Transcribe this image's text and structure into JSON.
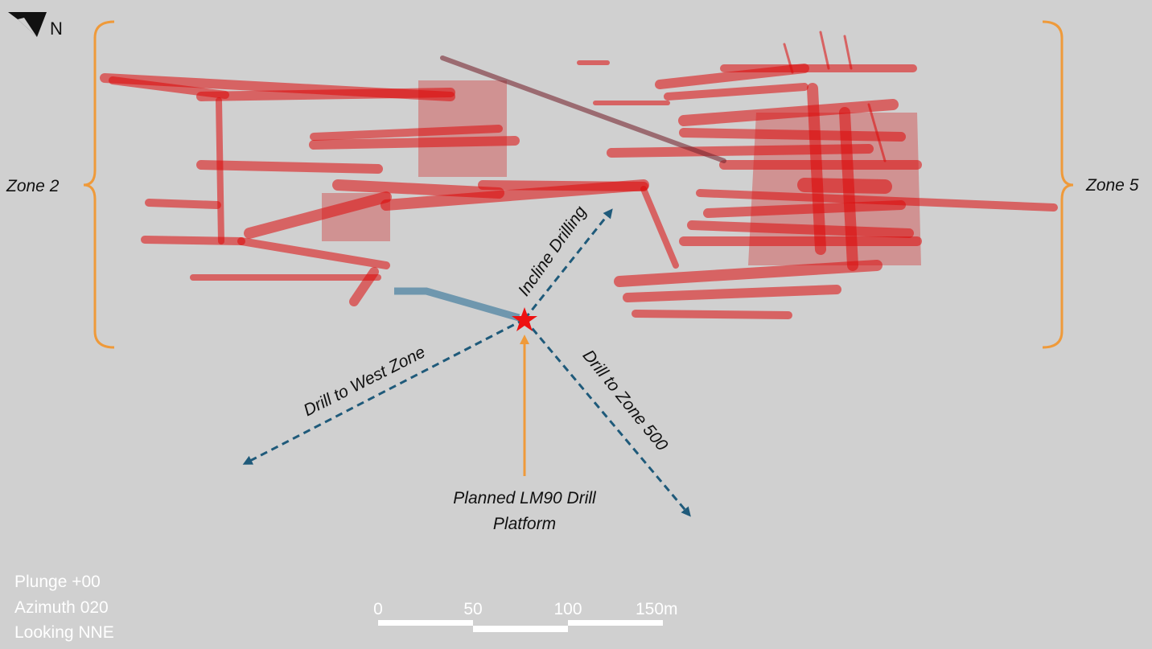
{
  "north_arrow": {
    "label": "N"
  },
  "zones": [
    {
      "label": "Zone 2"
    },
    {
      "label": "Zone 5"
    }
  ],
  "drill_directions": [
    {
      "label": "Incline Drilling"
    },
    {
      "label": "Drill to West Zone"
    },
    {
      "label": "Drill to Zone 500"
    }
  ],
  "platform": {
    "label_lines": [
      "Planned LM90 Drill",
      "Platform"
    ]
  },
  "view": {
    "lines": [
      "Plunge +00",
      "Azimuth 020",
      "Looking NNE"
    ]
  },
  "scale_bar": {
    "labels": [
      "0",
      "50",
      "100",
      "150m"
    ]
  }
}
